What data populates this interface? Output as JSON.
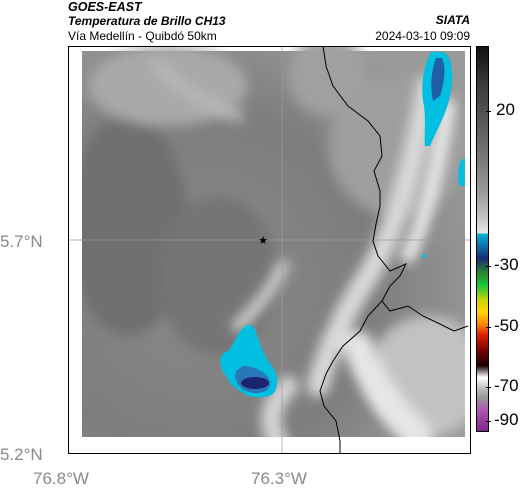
{
  "header": {
    "title1": "GOES-EAST",
    "title2": "Temperatura de Brillo CH13",
    "subtitle": "Vía Medellín - Quibdó 50km",
    "organization": "SIATA",
    "timestamp": "2024-03-10 09:09"
  },
  "axes": {
    "y_ticks": [
      "5.7°N",
      "5.2°N"
    ],
    "x_ticks": [
      "76.8°W",
      "76.3°W"
    ]
  },
  "colorbar": {
    "labels": [
      "20",
      "-30",
      "-50",
      "-70",
      "-90"
    ]
  },
  "map": {
    "marker": "star-icon",
    "colors": {
      "cyan": "#00bfe0",
      "blue": "#1f5fa8",
      "navy": "#1b2470"
    }
  }
}
